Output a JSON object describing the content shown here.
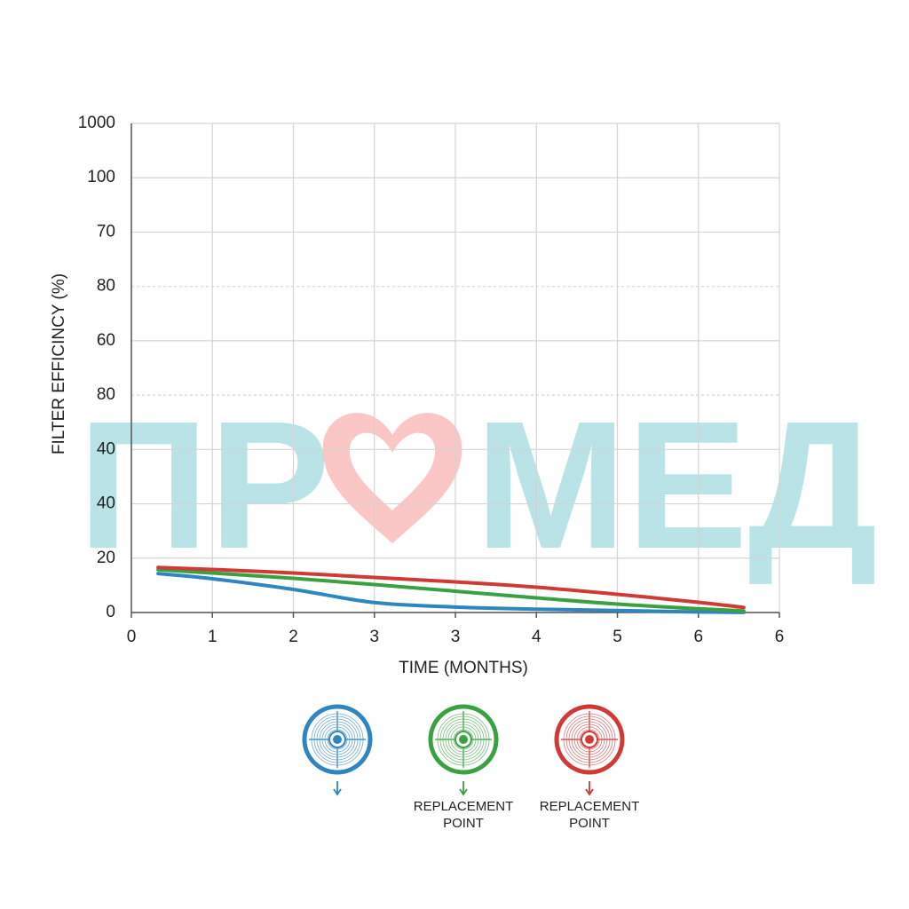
{
  "chart_data": {
    "type": "line",
    "y_label": "FILTER EFFICINCY (%)",
    "x_label": "TIME (MONTHS)",
    "watermark": [
      "ПР",
      "МЕД"
    ],
    "xlim": [
      0,
      8
    ],
    "xticks": [
      0,
      1,
      2,
      {
        "value": 3,
        "label": "3"
      },
      {
        "value": 4,
        "label": "3"
      },
      {
        "value": 5,
        "label": "4"
      },
      {
        "value": 6,
        "label": "5"
      },
      {
        "value": 7,
        "label": "6"
      },
      {
        "value": 8,
        "label": "6"
      }
    ],
    "ylim": [
      0,
      90
    ],
    "yticks": [
      0,
      {
        "value": 10,
        "label": "20"
      },
      {
        "value": 20,
        "label": "40"
      },
      {
        "value": 30,
        "label": "40"
      },
      {
        "value": 40,
        "label": "80"
      },
      {
        "value": 50,
        "label": "60"
      },
      {
        "value": 60,
        "label": "80"
      },
      {
        "value": 70,
        "label": "70"
      },
      {
        "value": 80,
        "label": "100"
      },
      {
        "value": 90,
        "label": "1000"
      }
    ],
    "dashed_grid_values": [
      40,
      60
    ],
    "grid": true,
    "x": [
      0.33,
      1,
      2,
      3,
      4,
      5,
      6,
      7,
      7.56
    ],
    "series": [
      {
        "color": "#2e86c1",
        "values": [
          7.16,
          6.21,
          4.25,
          1.83,
          1.01,
          0.62,
          0.36,
          0.1,
          0.03
        ]
      },
      {
        "color": "#3aa142",
        "values": [
          7.88,
          7.27,
          6.29,
          5.15,
          3.92,
          2.7,
          1.55,
          0.69,
          0.29
        ]
      },
      {
        "color": "#d03a36",
        "values": [
          8.28,
          7.92,
          7.27,
          6.45,
          5.64,
          4.66,
          3.35,
          1.88,
          0.93
        ]
      }
    ],
    "legend": [
      {
        "color": "#2e86c1"
      },
      {
        "color": "#3aa142",
        "label": [
          "REPLACEMENT",
          "POINT"
        ]
      },
      {
        "color": "#d03a36",
        "label": [
          "REPLACEMENT",
          "POINT"
        ]
      }
    ]
  }
}
